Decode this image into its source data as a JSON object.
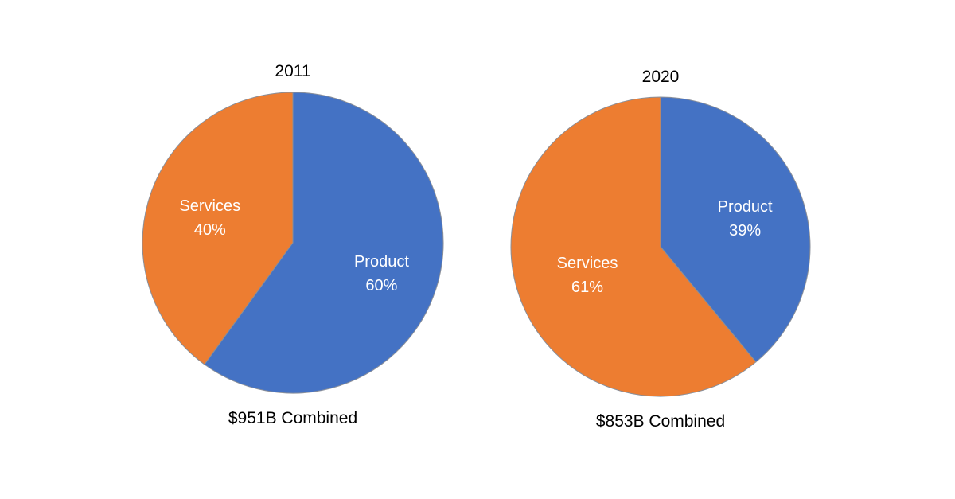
{
  "chart_data": [
    {
      "type": "pie",
      "title": "2011",
      "caption": "$951B Combined",
      "slices": [
        {
          "label": "Product",
          "value": 60,
          "display": "60%",
          "color": "#4472C4"
        },
        {
          "label": "Services",
          "value": 40,
          "display": "40%",
          "color": "#ED7D31"
        }
      ],
      "start_angle": "12 o'clock, clockwise"
    },
    {
      "type": "pie",
      "title": "2020",
      "caption": "$853B Combined",
      "slices": [
        {
          "label": "Product",
          "value": 39,
          "display": "39%",
          "color": "#4472C4"
        },
        {
          "label": "Services",
          "value": 61,
          "display": "61%",
          "color": "#ED7D31"
        }
      ],
      "start_angle": "12 o'clock, clockwise"
    }
  ]
}
